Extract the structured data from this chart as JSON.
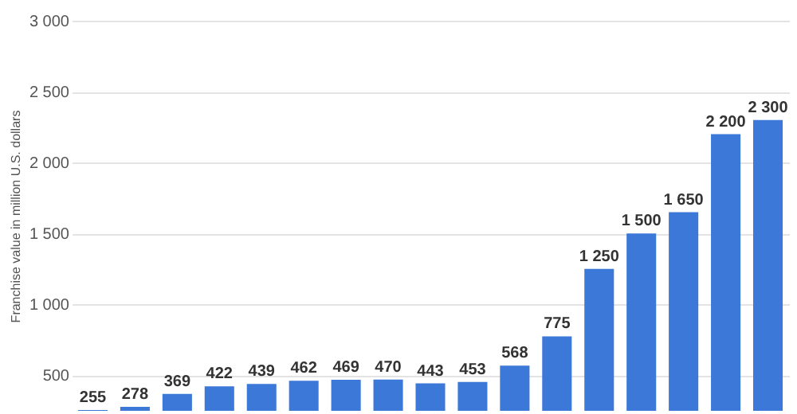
{
  "chart_data": {
    "type": "bar",
    "ylabel": "Franchise value in million U.S. dollars",
    "categories": [
      null,
      null,
      null,
      null,
      null,
      null,
      null,
      null,
      null,
      null,
      null,
      null,
      null,
      null,
      null,
      null,
      null
    ],
    "values": [
      255,
      278,
      369,
      422,
      439,
      462,
      469,
      470,
      443,
      453,
      568,
      775,
      1250,
      1500,
      1650,
      2200,
      2300
    ],
    "color": "#3b78d8",
    "value_labels": [
      "255",
      "278",
      "369",
      "422",
      "439",
      "462",
      "469",
      "470",
      "443",
      "453",
      "568",
      "775",
      "1 250",
      "1 500",
      "1 650",
      "2 200",
      "2 300"
    ],
    "ylim": [
      250,
      3000
    ],
    "yticks": [
      {
        "value": 500,
        "label": "500"
      },
      {
        "value": 1000,
        "label": "1 000"
      },
      {
        "value": 1500,
        "label": "1 500"
      },
      {
        "value": 2000,
        "label": "2 000"
      },
      {
        "value": 2500,
        "label": "2 500"
      },
      {
        "value": 3000,
        "label": "3 000"
      }
    ],
    "grid": "y",
    "tick_labels": "y"
  }
}
